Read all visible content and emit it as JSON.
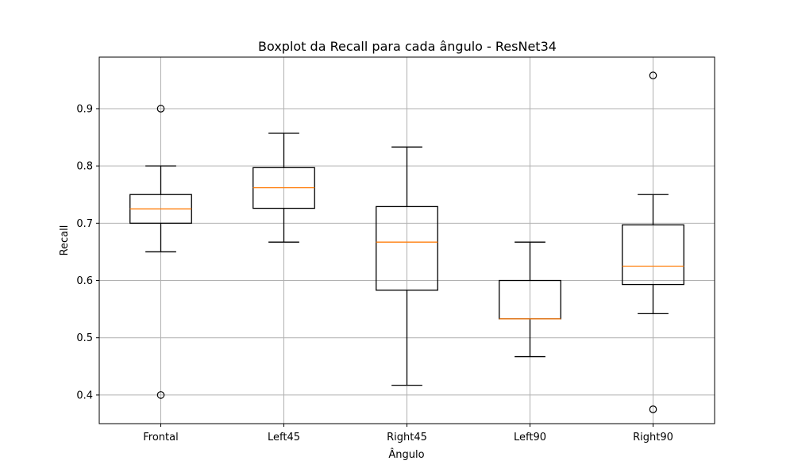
{
  "chart_data": {
    "type": "boxplot",
    "title": "Boxplot da Recall para cada ângulo - ResNet34",
    "xlabel": "Ângulo",
    "ylabel": "Recall",
    "ylim": [
      0.35,
      0.99
    ],
    "yticks": [
      "0.4",
      "0.5",
      "0.6",
      "0.7",
      "0.8",
      "0.9"
    ],
    "grid": true,
    "categories": [
      "Frontal",
      "Left45",
      "Right45",
      "Left90",
      "Right90"
    ],
    "boxes": [
      {
        "category": "Frontal",
        "whisker_low": 0.65,
        "q1": 0.7,
        "median": 0.725,
        "q3": 0.75,
        "whisker_high": 0.8,
        "outliers": [
          0.9,
          0.4
        ]
      },
      {
        "category": "Left45",
        "whisker_low": 0.667,
        "q1": 0.726,
        "median": 0.762,
        "q3": 0.797,
        "whisker_high": 0.857,
        "outliers": []
      },
      {
        "category": "Right45",
        "whisker_low": 0.417,
        "q1": 0.583,
        "median": 0.667,
        "q3": 0.729,
        "whisker_high": 0.833,
        "outliers": []
      },
      {
        "category": "Left90",
        "whisker_low": 0.467,
        "q1": 0.533,
        "median": 0.533,
        "q3": 0.6,
        "whisker_high": 0.667,
        "outliers": []
      },
      {
        "category": "Right90",
        "whisker_low": 0.542,
        "q1": 0.593,
        "median": 0.625,
        "q3": 0.697,
        "whisker_high": 0.75,
        "outliers": [
          0.958,
          0.375
        ]
      }
    ],
    "colors": {
      "box": "#000000",
      "median": "#ff7f0e",
      "grid": "#b0b0b0"
    }
  }
}
